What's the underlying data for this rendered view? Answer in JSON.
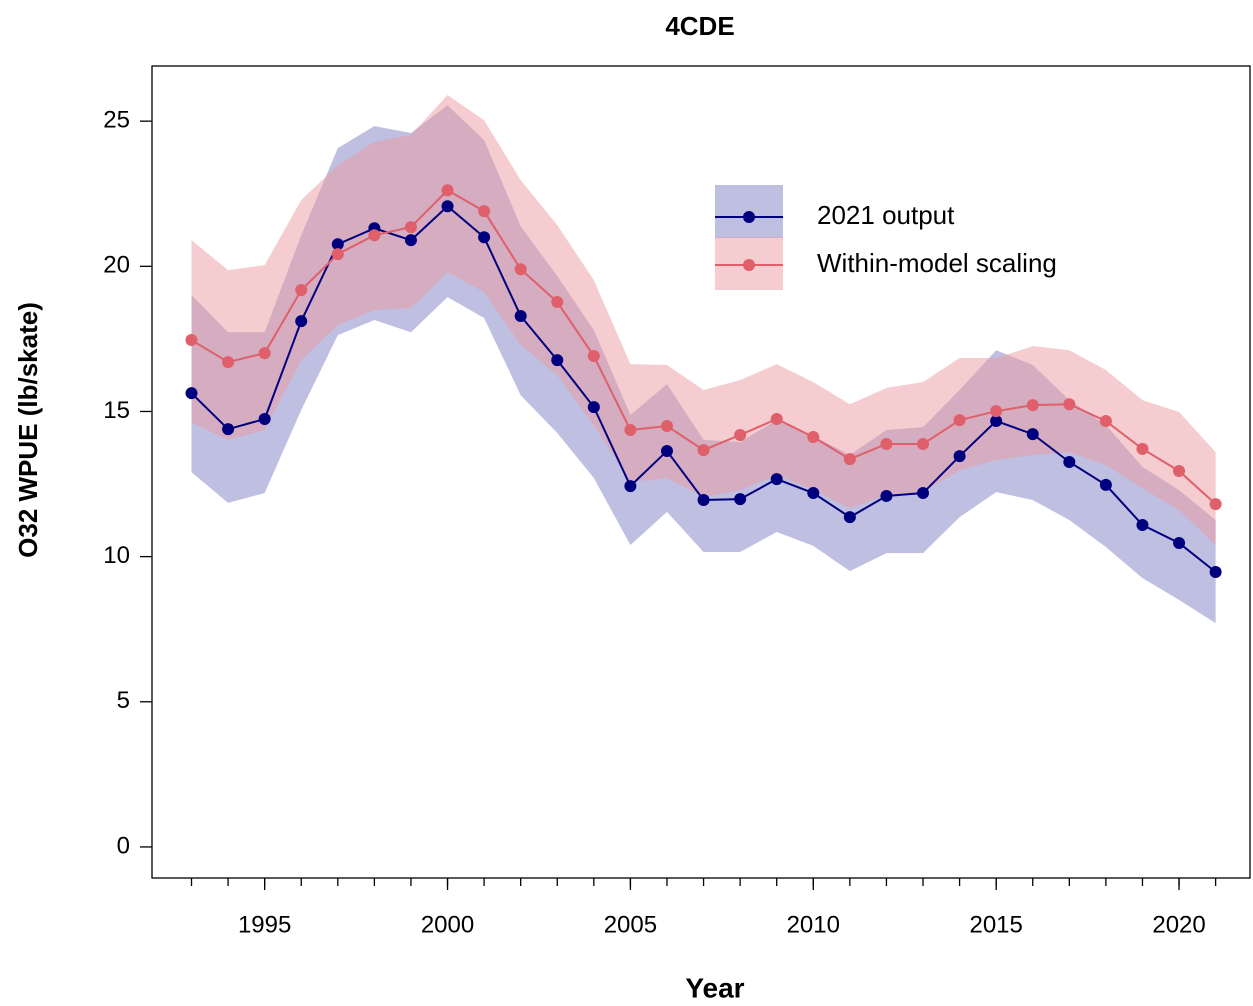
{
  "chart_data": {
    "type": "line",
    "title": "4CDE",
    "x_label": "Year",
    "y_label": "O32 WPUE (lb/skate)",
    "x": [
      1993,
      1994,
      1995,
      1996,
      1997,
      1998,
      1999,
      2000,
      2001,
      2002,
      2003,
      2004,
      2005,
      2006,
      2007,
      2008,
      2009,
      2010,
      2011,
      2012,
      2013,
      2014,
      2015,
      2016,
      2017,
      2018,
      2019,
      2020,
      2021
    ],
    "series": [
      {
        "name": "2021 output",
        "color": "#00007f",
        "band_color": "#7f7fc4",
        "values": [
          15.63,
          14.39,
          14.74,
          18.11,
          20.76,
          21.31,
          20.9,
          22.07,
          21.0,
          18.29,
          16.77,
          15.15,
          12.43,
          13.64,
          11.95,
          11.98,
          12.67,
          12.19,
          11.36,
          12.09,
          12.19,
          13.46,
          14.67,
          14.22,
          13.26,
          12.47,
          11.09,
          10.47,
          9.47
        ],
        "lower": [
          12.91,
          11.85,
          12.19,
          15.05,
          17.63,
          18.15,
          17.73,
          18.94,
          18.22,
          15.56,
          14.26,
          12.71,
          10.4,
          11.54,
          10.16,
          10.16,
          10.85,
          10.37,
          9.5,
          10.12,
          10.12,
          11.36,
          12.22,
          11.95,
          11.26,
          10.33,
          9.26,
          8.51,
          7.71
        ],
        "upper": [
          19.01,
          17.73,
          17.73,
          21.07,
          24.07,
          24.83,
          24.59,
          25.55,
          24.35,
          21.38,
          19.66,
          17.8,
          14.88,
          15.94,
          14.02,
          13.95,
          14.7,
          14.15,
          13.5,
          14.36,
          14.46,
          15.74,
          17.11,
          16.6,
          15.39,
          14.53,
          13.09,
          12.29,
          11.26
        ]
      },
      {
        "name": "Within-model scaling",
        "color": "#df5f6a",
        "band_color": "#eb9aa0",
        "values": [
          17.46,
          16.7,
          17.01,
          19.18,
          20.42,
          21.07,
          21.35,
          22.62,
          21.9,
          19.9,
          18.77,
          16.91,
          14.36,
          14.5,
          13.67,
          14.19,
          14.74,
          14.12,
          13.36,
          13.88,
          13.88,
          14.7,
          15.01,
          15.22,
          15.25,
          14.67,
          13.71,
          12.95,
          11.81
        ],
        "lower": [
          14.63,
          14.02,
          14.36,
          16.77,
          17.98,
          18.49,
          18.56,
          19.8,
          19.11,
          17.29,
          16.25,
          14.53,
          12.57,
          12.71,
          12.05,
          12.29,
          12.81,
          12.29,
          11.67,
          12.12,
          12.22,
          12.98,
          13.33,
          13.5,
          13.6,
          13.15,
          12.36,
          11.6,
          10.4
        ],
        "upper": [
          20.9,
          19.87,
          20.04,
          22.28,
          23.48,
          24.28,
          24.52,
          25.9,
          25.03,
          22.97,
          21.42,
          19.52,
          16.63,
          16.6,
          15.74,
          16.08,
          16.63,
          16.01,
          15.25,
          15.81,
          16.01,
          16.84,
          16.84,
          17.25,
          17.11,
          16.43,
          15.39,
          14.98,
          13.6
        ]
      }
    ],
    "xlim": [
      1991.92,
      2021.94
    ],
    "ylim": [
      -1.07,
      26.9
    ],
    "xticks": [
      1995,
      2000,
      2005,
      2010,
      2015,
      2020
    ],
    "xminor_ticks": [
      1993,
      1994,
      1995,
      1996,
      1997,
      1998,
      1999,
      2000,
      2001,
      2002,
      2003,
      2004,
      2005,
      2006,
      2007,
      2008,
      2009,
      2010,
      2011,
      2012,
      2013,
      2014,
      2015,
      2016,
      2017,
      2018,
      2019,
      2020,
      2021
    ],
    "yticks": [
      0,
      5,
      10,
      15,
      20,
      25
    ],
    "legend": "upper right"
  }
}
